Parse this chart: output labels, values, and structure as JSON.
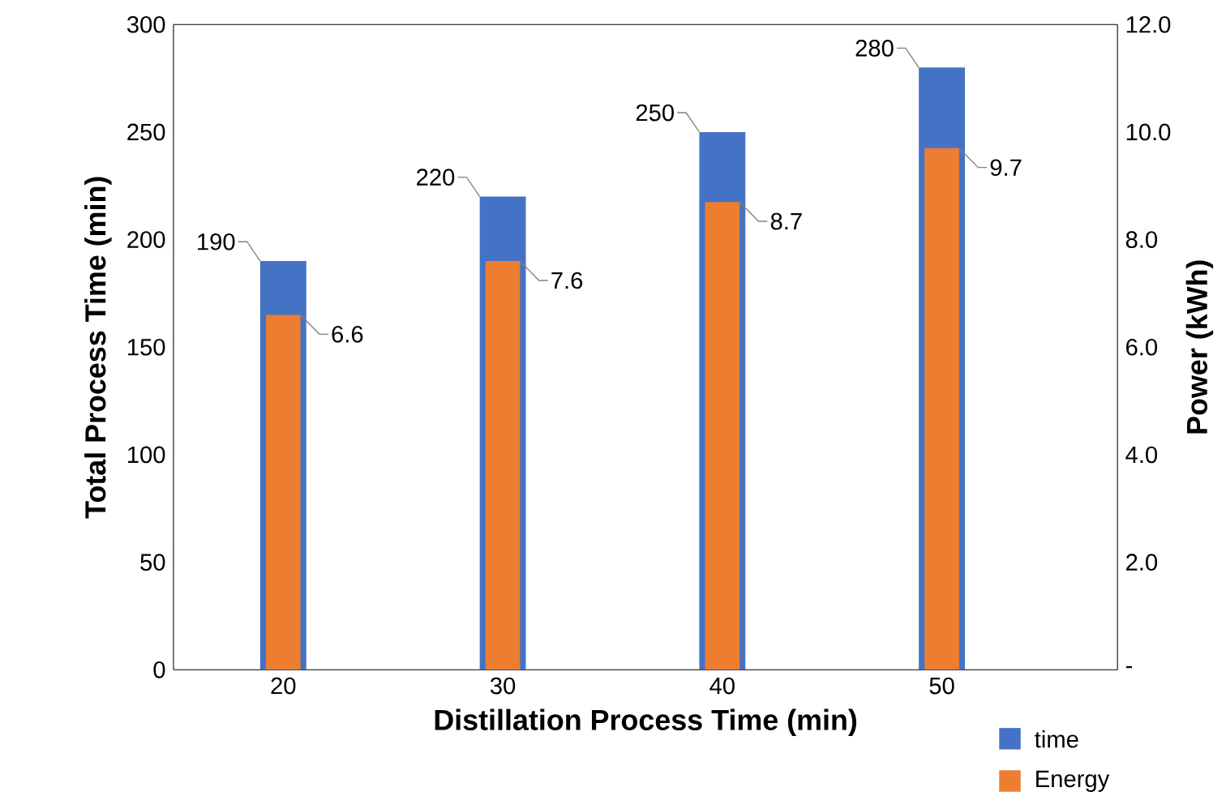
{
  "chart_data": {
    "type": "bar",
    "xlabel": "Distillation Process Time (min)",
    "ylabel": "Total Process Time (min)",
    "y2label": "Power (kWh)",
    "categories": [
      "20",
      "30",
      "40",
      "50"
    ],
    "series": [
      {
        "name": "time",
        "color": "#4472c4",
        "axis": "y",
        "values": [
          190,
          220,
          250,
          280
        ]
      },
      {
        "name": "Energy",
        "color": "#ed7d31",
        "axis": "y2",
        "values": [
          6.6,
          7.6,
          8.7,
          9.7
        ]
      }
    ],
    "ylim": [
      0,
      300
    ],
    "yticks": [
      0,
      50,
      100,
      150,
      200,
      250,
      300
    ],
    "y2lim": [
      0,
      12
    ],
    "y2ticks": [
      {
        "value": 0,
        "label": "-"
      },
      {
        "value": 2,
        "label": "2.0"
      },
      {
        "value": 4,
        "label": "4.0"
      },
      {
        "value": 6,
        "label": "6.0"
      },
      {
        "value": 8,
        "label": "8.0"
      },
      {
        "value": 10,
        "label": "10.0"
      },
      {
        "value": 12,
        "label": "12.0"
      }
    ],
    "data_labels": true,
    "legend": "bottom right"
  }
}
